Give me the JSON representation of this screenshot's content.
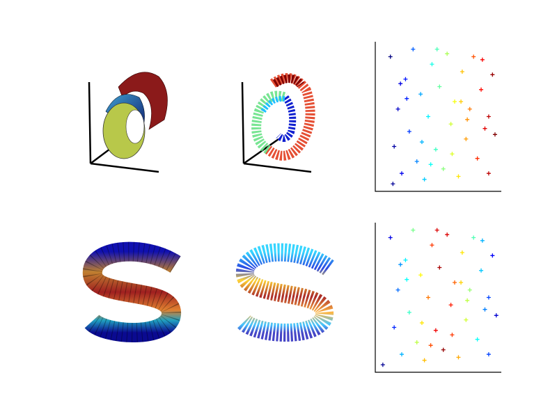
{
  "chart_data": [
    {
      "type": "surface3d"
    },
    {
      "type": "scatter3d"
    },
    {
      "type": "scatter",
      "colormap": "jet",
      "marker": "+",
      "xlim": [
        0,
        1
      ],
      "ylim": [
        0,
        1
      ],
      "clim": [
        0.12,
        0.95
      ],
      "x": [
        0.12,
        0.15,
        0.18,
        0.21,
        0.24,
        0.27,
        0.3,
        0.33,
        0.36,
        0.39,
        0.42,
        0.45,
        0.48,
        0.51,
        0.54,
        0.57,
        0.6,
        0.63,
        0.66,
        0.69,
        0.72,
        0.75,
        0.78,
        0.81,
        0.84,
        0.87,
        0.9,
        0.93,
        0.14,
        0.25,
        0.37,
        0.49,
        0.61,
        0.73,
        0.85,
        0.95,
        0.2,
        0.44,
        0.68,
        0.9
      ],
      "values": [
        0.9,
        0.3,
        0.55,
        0.12,
        0.75,
        0.4,
        0.95,
        0.2,
        0.65,
        0.08,
        0.5,
        0.85,
        0.28,
        0.7,
        0.15,
        0.92,
        0.45,
        0.6,
        0.1,
        0.8,
        0.35,
        0.55,
        0.9,
        0.22,
        0.68,
        0.42,
        0.12,
        0.78,
        0.05,
        0.62,
        0.33,
        0.95,
        0.25,
        0.48,
        0.88,
        0.38,
        0.72,
        0.18,
        0.6,
        0.5
      ],
      "colors": [
        0.12,
        0.15,
        0.18,
        0.21,
        0.24,
        0.27,
        0.3,
        0.33,
        0.36,
        0.39,
        0.42,
        0.45,
        0.48,
        0.51,
        0.54,
        0.57,
        0.6,
        0.63,
        0.66,
        0.69,
        0.72,
        0.75,
        0.78,
        0.81,
        0.84,
        0.87,
        0.9,
        0.93,
        0.14,
        0.25,
        0.37,
        0.49,
        0.61,
        0.73,
        0.85,
        0.95,
        0.2,
        0.44,
        0.68,
        0.9
      ]
    },
    {
      "type": "surface3d"
    },
    {
      "type": "scatter3d"
    },
    {
      "type": "scatter",
      "colormap": "jet",
      "marker": "+",
      "xlim": [
        0,
        1
      ],
      "ylim": [
        0,
        1
      ],
      "clim": [
        0,
        1
      ],
      "x": [
        0.12,
        0.15,
        0.18,
        0.21,
        0.24,
        0.27,
        0.3,
        0.33,
        0.36,
        0.39,
        0.42,
        0.45,
        0.48,
        0.51,
        0.54,
        0.57,
        0.6,
        0.63,
        0.66,
        0.69,
        0.72,
        0.75,
        0.78,
        0.81,
        0.84,
        0.87,
        0.9,
        0.93,
        0.06,
        0.25,
        0.37,
        0.49,
        0.61,
        0.73,
        0.85,
        0.96,
        0.2,
        0.44,
        0.68,
        0.9
      ],
      "values": [
        0.9,
        0.3,
        0.55,
        0.12,
        0.75,
        0.4,
        0.95,
        0.2,
        0.65,
        0.08,
        0.5,
        0.85,
        0.28,
        0.7,
        0.15,
        0.92,
        0.45,
        0.6,
        0.1,
        0.8,
        0.35,
        0.55,
        0.9,
        0.22,
        0.68,
        0.42,
        0.12,
        0.78,
        0.05,
        0.62,
        0.33,
        0.95,
        0.25,
        0.48,
        0.88,
        0.38,
        0.72,
        0.18,
        0.6,
        0.5
      ],
      "colors": [
        0.1,
        0.16,
        0.23,
        0.3,
        0.36,
        0.43,
        0.49,
        0.56,
        0.63,
        0.69,
        0.76,
        0.82,
        0.89,
        0.96,
        0.98,
        0.91,
        0.85,
        0.78,
        0.71,
        0.65,
        0.58,
        0.52,
        0.45,
        0.38,
        0.32,
        0.25,
        0.19,
        0.12,
        0.02,
        0.38,
        0.65,
        0.91,
        0.82,
        0.56,
        0.3,
        0.08,
        0.27,
        0.8,
        0.67,
        0.19
      ]
    }
  ]
}
